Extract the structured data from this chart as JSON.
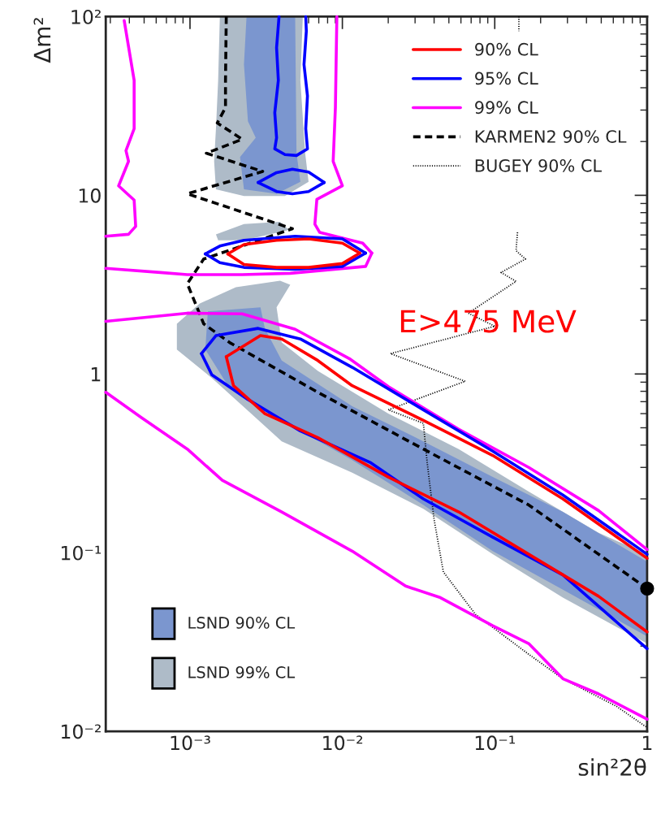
{
  "chart_data": {
    "type": "line",
    "xlabel": "sin²2θ",
    "ylabel": "Δm²",
    "log": "xy",
    "xlim": [
      0.00028,
      1
    ],
    "ylim": [
      0.01,
      100
    ],
    "xticks": [
      {
        "value": 0.001,
        "label": "10⁻³"
      },
      {
        "value": 0.01,
        "label": "10⁻²"
      },
      {
        "value": 0.1,
        "label": "10⁻¹"
      },
      1
    ],
    "yticks": [
      {
        "value": 0.01,
        "label": "10⁻²"
      },
      {
        "value": 0.1,
        "label": "10⁻¹"
      },
      1,
      10,
      {
        "value": 100,
        "label": "10²"
      }
    ],
    "legend": "top right",
    "grid": false,
    "annotations": [
      "E>475 MeV"
    ],
    "series": [
      {
        "name": "LSND 90% CL",
        "type": "area",
        "color": "#7b96cf",
        "x": [
          0.00235,
          0.00226,
          0.0024,
          0.0027,
          0.00213,
          0.00226,
          0.0037,
          0.0053,
          0.005,
          0.0049,
          null,
          0.00126,
          0.00131,
          0.0029,
          0.0031,
          0.004,
          0.0116,
          0.034,
          0.097,
          0.28,
          1.0,
          1.0,
          0.28,
          0.097,
          0.034,
          0.0116,
          0.004,
          0.00182
        ],
        "values": [
          100,
          54,
          26,
          21,
          16.4,
          10.8,
          10.2,
          11.9,
          17.2,
          100,
          null,
          1.37,
          2.24,
          2.36,
          1.8,
          1.19,
          0.66,
          0.42,
          0.265,
          0.169,
          0.089,
          0.034,
          0.062,
          0.102,
          0.185,
          0.33,
          0.55,
          0.83
        ]
      },
      {
        "name": "LSND 99% CL",
        "type": "area",
        "color": "#aebbc8",
        "x": [
          0.00157,
          0.00153,
          0.00148,
          0.00144,
          0.00148,
          0.00226,
          0.0042,
          0.006,
          0.0057,
          0.0053,
          0.0055,
          null,
          0.00148,
          0.00226,
          0.0039,
          0.00445,
          0.00226,
          0.00153,
          null,
          0.00082,
          0.00116,
          0.002,
          0.0039,
          0.00455,
          0.0037,
          0.004,
          0.0069,
          0.02,
          0.058,
          0.167,
          0.48,
          1.0,
          1.0,
          0.28,
          0.097,
          0.034,
          0.0116,
          0.004,
          0.00139,
          0.00082
        ],
        "values": [
          100,
          44,
          23.6,
          15.5,
          10.8,
          9.9,
          9.9,
          11.9,
          17.2,
          44,
          100,
          null,
          6.05,
          6.9,
          7.1,
          6.4,
          5.6,
          5.6,
          null,
          1.91,
          2.48,
          3.06,
          3.33,
          3.16,
          2.36,
          1.5,
          1.04,
          0.6,
          0.38,
          0.22,
          0.129,
          0.098,
          0.031,
          0.056,
          0.098,
          0.176,
          0.28,
          0.42,
          0.95,
          1.37
        ]
      },
      {
        "name": "90% CL",
        "color": "#ff0000",
        "line_style": "solid",
        "x": [
          0.00177,
          0.00226,
          0.0037,
          0.006,
          0.01,
          0.013
        ],
        "values": [
          4.7,
          5.3,
          5.6,
          5.7,
          5.4,
          4.75
        ]
      },
      {
        "color": "#ff0000",
        "line_style": "solid",
        "x": [
          0.00177,
          0.00226,
          0.0037,
          0.006,
          0.01,
          0.013
        ],
        "values": [
          4.7,
          4.1,
          3.95,
          3.95,
          4.15,
          4.75
        ]
      },
      {
        "color": "#ff0000",
        "line_style": "solid",
        "x": [
          0.00173,
          0.00193,
          0.0031,
          0.0069,
          0.02,
          0.058,
          0.167,
          0.48,
          1.0
        ],
        "values": [
          1.25,
          0.86,
          0.6,
          0.44,
          0.265,
          0.169,
          0.098,
          0.057,
          0.036
        ]
      },
      {
        "color": "#ff0000",
        "line_style": "solid",
        "x": [
          0.00173,
          0.0029,
          0.004,
          0.0069,
          0.0116,
          0.034,
          0.097,
          0.28,
          1.0
        ],
        "values": [
          1.25,
          1.64,
          1.57,
          1.19,
          0.86,
          0.55,
          0.35,
          0.2,
          0.093
        ]
      },
      {
        "name": "95% CL",
        "color": "#0000ff",
        "line_style": "solid",
        "x": [
          0.00384,
          0.0037,
          0.0038,
          0.0036,
          0.0037,
          0.0036,
          0.0042,
          0.005,
          0.0059,
          0.00575,
          0.0059,
          0.0056,
          0.0058,
          0.00575
        ],
        "values": [
          100,
          67,
          44,
          29,
          21,
          18.2,
          16.9,
          16.7,
          18.2,
          23.6,
          36,
          54,
          83,
          100
        ]
      },
      {
        "color": "#0000ff",
        "line_style": "solid",
        "x": [
          0.0028,
          0.0037,
          0.0047,
          0.006,
          0.0076
        ],
        "values": [
          11.8,
          13.4,
          14.0,
          13.5,
          11.8
        ]
      },
      {
        "color": "#0000ff",
        "line_style": "solid",
        "x": [
          0.0028,
          0.0037,
          0.0047,
          0.006,
          0.0076
        ],
        "values": [
          11.8,
          10.5,
          10.2,
          10.5,
          11.8
        ]
      },
      {
        "color": "#0000ff",
        "line_style": "solid",
        "x": [
          0.00126,
          0.00157,
          0.00226,
          0.0049,
          0.01,
          0.0142
        ],
        "values": [
          4.7,
          5.2,
          5.6,
          5.9,
          5.7,
          4.75
        ]
      },
      {
        "color": "#0000ff",
        "line_style": "solid",
        "x": [
          0.00126,
          0.00157,
          0.00226,
          0.0049,
          0.01,
          0.0142
        ],
        "values": [
          4.7,
          4.2,
          3.95,
          3.85,
          4.0,
          4.75
        ]
      },
      {
        "color": "#0000ff",
        "line_style": "solid",
        "x": [
          0.00119,
          0.00139,
          0.0024,
          0.0053,
          0.0152,
          0.034,
          0.097,
          0.28,
          1.0
        ],
        "values": [
          1.3,
          0.99,
          0.72,
          0.48,
          0.32,
          0.2,
          0.122,
          0.075,
          0.029
        ]
      },
      {
        "color": "#0000ff",
        "line_style": "solid",
        "x": [
          0.00119,
          0.00148,
          0.0028,
          0.0053,
          0.0116,
          0.034,
          0.097,
          0.28,
          1.0
        ],
        "values": [
          1.3,
          1.64,
          1.8,
          1.57,
          1.09,
          0.63,
          0.37,
          0.21,
          0.098
        ]
      },
      {
        "name": "99% CL",
        "color": "#ff00ff",
        "line_style": "solid",
        "x": [
          0.00037,
          0.00043,
          0.00043,
          0.00038,
          0.000395,
          0.00034,
          0.00043,
          0.00044,
          0.000395,
          0.00028
        ],
        "values": [
          95,
          44,
          23.6,
          17.8,
          15.5,
          11.3,
          9.4,
          6.7,
          6.05,
          5.9
        ]
      },
      {
        "color": "#ff00ff",
        "line_style": "solid",
        "x": [
          0.0092,
          0.009,
          0.0087,
          0.01,
          0.0068,
          0.0066,
          0.0071,
          0.0136,
          0.0156
        ],
        "values": [
          100,
          31,
          15.5,
          11.3,
          9.5,
          6.9,
          6.2,
          5.4,
          4.75
        ]
      },
      {
        "color": "#ff00ff",
        "line_style": "solid",
        "x": [
          0.0156,
          0.0142,
          0.00455,
          0.0022,
          0.00096,
          0.00064,
          0.00028
        ],
        "values": [
          4.75,
          4.0,
          3.66,
          3.6,
          3.6,
          3.7,
          3.9
        ]
      },
      {
        "color": "#ff00ff",
        "line_style": "solid",
        "x": [
          0.00028,
          0.00096,
          0.0022,
          0.0049,
          0.0111,
          0.02,
          0.058,
          0.167,
          0.48,
          1.0
        ],
        "values": [
          1.97,
          2.19,
          2.17,
          1.78,
          1.22,
          0.85,
          0.49,
          0.3,
          0.172,
          0.104
        ]
      },
      {
        "color": "#ff00ff",
        "line_style": "solid",
        "x": [
          0.00028,
          0.00048,
          0.00096,
          0.00163,
          0.004,
          0.0116,
          0.026,
          0.044,
          0.097,
          0.167,
          0.28,
          0.48,
          1.0
        ],
        "values": [
          0.79,
          0.57,
          0.38,
          0.254,
          0.169,
          0.102,
          0.065,
          0.056,
          0.039,
          0.031,
          0.0197,
          0.0162,
          0.0117
        ]
      },
      {
        "name": "KARMEN2 90% CL",
        "color": "#000000",
        "line_style": "dashed",
        "x": [
          0.00173,
          0.00171,
          0.00171,
          0.00151,
          0.0022,
          0.00128,
          0.003,
          0.00096,
          0.0047,
          0.00123,
          0.00096,
          0.00123,
          0.00182,
          0.0069,
          0.034,
          0.167,
          1.0
        ],
        "values": [
          100,
          44,
          31,
          25.4,
          20.6,
          17.2,
          13.6,
          10.2,
          6.5,
          4.4,
          3.2,
          1.91,
          1.5,
          0.79,
          0.38,
          0.185,
          0.063
        ]
      },
      {
        "name": "BUGEY 90% CL",
        "color": "#000000",
        "line_style": "dotted",
        "x": [
          0.141,
          0.138,
          0.159,
          0.11,
          0.138,
          0.067,
          0.1,
          0.0207,
          0.064,
          0.02,
          0.034,
          0.036,
          0.04,
          0.046,
          0.075,
          0.167,
          0.28,
          0.63,
          1.0
        ],
        "values": [
          6.2,
          4.9,
          4.4,
          3.7,
          3.3,
          2.19,
          1.85,
          1.3,
          0.91,
          0.63,
          0.53,
          0.32,
          0.153,
          0.078,
          0.045,
          0.027,
          0.0197,
          0.0138,
          0.0105
        ]
      },
      {
        "color": "#000000",
        "line_style": "dotted",
        "x": [
          0.144,
          0.144
        ],
        "values": [
          100,
          83
        ]
      },
      {
        "type": "scatter",
        "color": "#000000",
        "marker": "circle",
        "x": [
          1.0
        ],
        "values": [
          0.063
        ]
      }
    ]
  }
}
